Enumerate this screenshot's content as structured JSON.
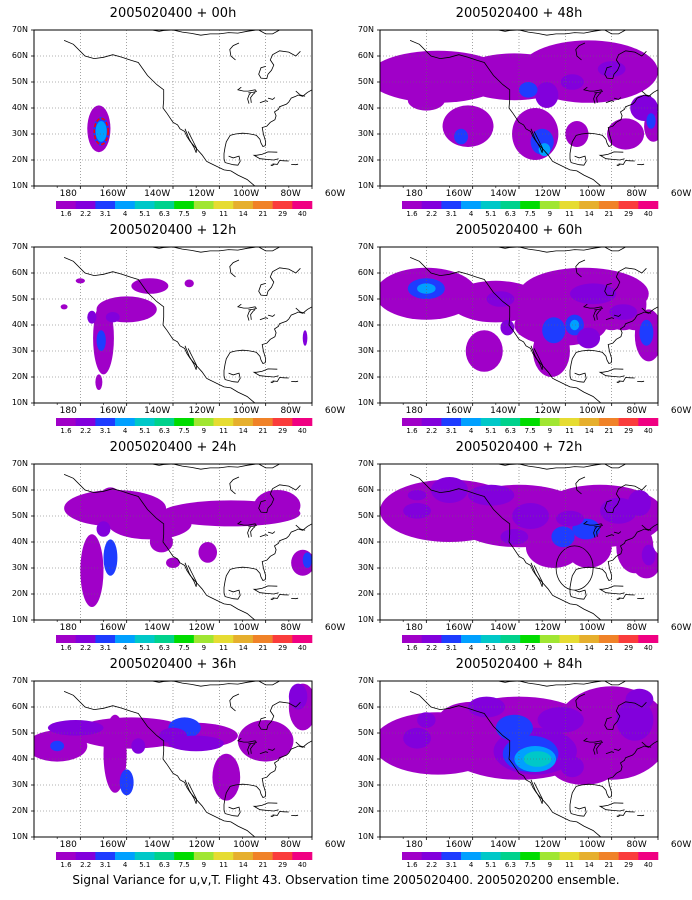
{
  "footer_caption": "Signal Variance for u,v,T. Flight 43. Observation time 2005020400. 2005020200 ensemble.",
  "colorbar": {
    "labels": [
      "1.6",
      "2.2",
      "3.1",
      "4",
      "5.1",
      "6.3",
      "7.5",
      "9",
      "11",
      "14",
      "21",
      "29",
      "40"
    ],
    "colors": [
      "#a000c8",
      "#8200dc",
      "#1e3cff",
      "#00a0ff",
      "#00c8c8",
      "#00d28c",
      "#00dc00",
      "#a0e632",
      "#e6dc32",
      "#e6af2d",
      "#f08228",
      "#fa3c3c",
      "#f00082"
    ]
  },
  "lat_labels": [
    "10N",
    "20N",
    "30N",
    "40N",
    "50N",
    "60N",
    "70N"
  ],
  "lon_labels": [
    "180",
    "160W",
    "140W",
    "120W",
    "100W",
    "80W",
    "60W"
  ],
  "panels": [
    {
      "title": "2005020400 + 00h",
      "forecast_hour": 0
    },
    {
      "title": "2005020400 + 48h",
      "forecast_hour": 48
    },
    {
      "title": "2005020400 + 12h",
      "forecast_hour": 12
    },
    {
      "title": "2005020400 + 60h",
      "forecast_hour": 60
    },
    {
      "title": "2005020400 + 24h",
      "forecast_hour": 24
    },
    {
      "title": "2005020400 + 72h",
      "forecast_hour": 72
    },
    {
      "title": "2005020400 + 36h",
      "forecast_hour": 36
    },
    {
      "title": "2005020400 + 84h",
      "forecast_hour": 84
    }
  ]
}
